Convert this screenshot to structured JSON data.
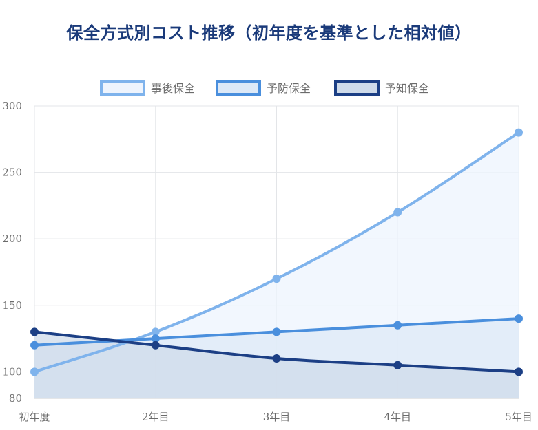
{
  "chart_data": {
    "type": "line",
    "title": "保全方式別コスト推移（初年度を基準とした相対値）",
    "categories": [
      "初年度",
      "2年目",
      "3年目",
      "4年目",
      "5年目"
    ],
    "series": [
      {
        "name": "事後保全",
        "values": [
          100,
          130,
          170,
          220,
          280
        ],
        "color": "#7fb3ec",
        "fill": "#eef4fd"
      },
      {
        "name": "予防保全",
        "values": [
          120,
          125,
          130,
          135,
          140
        ],
        "color": "#4a8fdd",
        "fill": "#dde9f7"
      },
      {
        "name": "予知保全",
        "values": [
          130,
          120,
          110,
          105,
          100
        ],
        "color": "#1c3f85",
        "fill": "#cfdbea"
      }
    ],
    "ylim": [
      80,
      300
    ],
    "yticks": [
      80,
      100,
      150,
      200,
      250,
      300
    ],
    "grid": true,
    "legend": "top",
    "area_fill": true,
    "xlabel": "",
    "ylabel": ""
  }
}
